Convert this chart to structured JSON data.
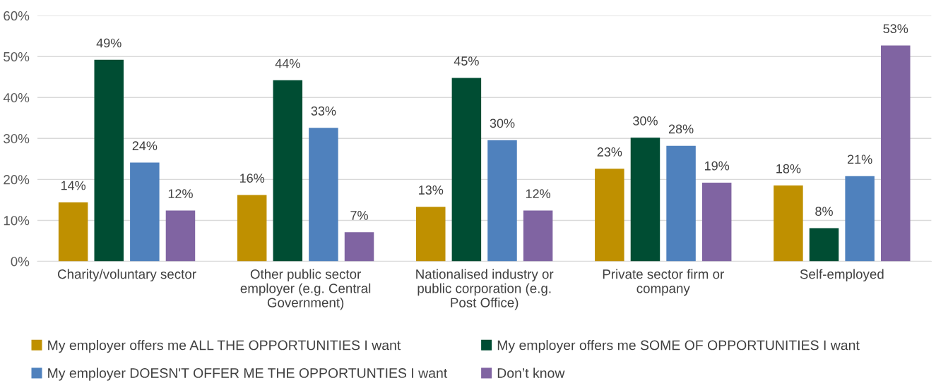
{
  "chart_data": {
    "type": "bar",
    "categories": [
      "Charity/voluntary sector",
      "Other public sector\nemployer (e.g. Central\nGovernment)",
      "Nationalised industry or\npublic corporation (e.g.\nPost Office)",
      "Private sector firm or\ncompany",
      "Self-employed"
    ],
    "series": [
      {
        "name": "My employer offers me ALL THE OPPORTUNITIES I want",
        "color": "#bf9000",
        "values": [
          14.4,
          16.2,
          13.3,
          22.6,
          18.5
        ],
        "value_labels": [
          "14%",
          "16%",
          "13%",
          "23%",
          "18%"
        ]
      },
      {
        "name": "My employer offers me SOME OF OPPORTUNITIES I want",
        "color": "#004d33",
        "values": [
          49.2,
          44.2,
          44.8,
          30.2,
          8.1
        ],
        "value_labels": [
          "49%",
          "44%",
          "45%",
          "30%",
          "8%"
        ]
      },
      {
        "name": "My employer DOESN'T OFFER ME THE OPPORTUNTIES I want",
        "color": "#4f81bd",
        "values": [
          24.1,
          32.6,
          29.6,
          28.2,
          20.8
        ],
        "value_labels": [
          "24%",
          "33%",
          "30%",
          "28%",
          "21%"
        ]
      },
      {
        "name": "Don’t know",
        "color": "#8064a2",
        "values": [
          12.4,
          7.1,
          12.4,
          19.2,
          52.7
        ],
        "value_labels": [
          "12%",
          "7%",
          "12%",
          "19%",
          "53%"
        ]
      }
    ],
    "ylim": [
      0,
      60
    ],
    "yticks": [
      {
        "value": 0,
        "label": "0%"
      },
      {
        "value": 10,
        "label": "10%"
      },
      {
        "value": 20,
        "label": "20%"
      },
      {
        "value": 30,
        "label": "30%"
      },
      {
        "value": 40,
        "label": "40%"
      },
      {
        "value": 50,
        "label": "50%"
      },
      {
        "value": 60,
        "label": "60%"
      }
    ],
    "grid": "y",
    "legend": "bottom"
  }
}
